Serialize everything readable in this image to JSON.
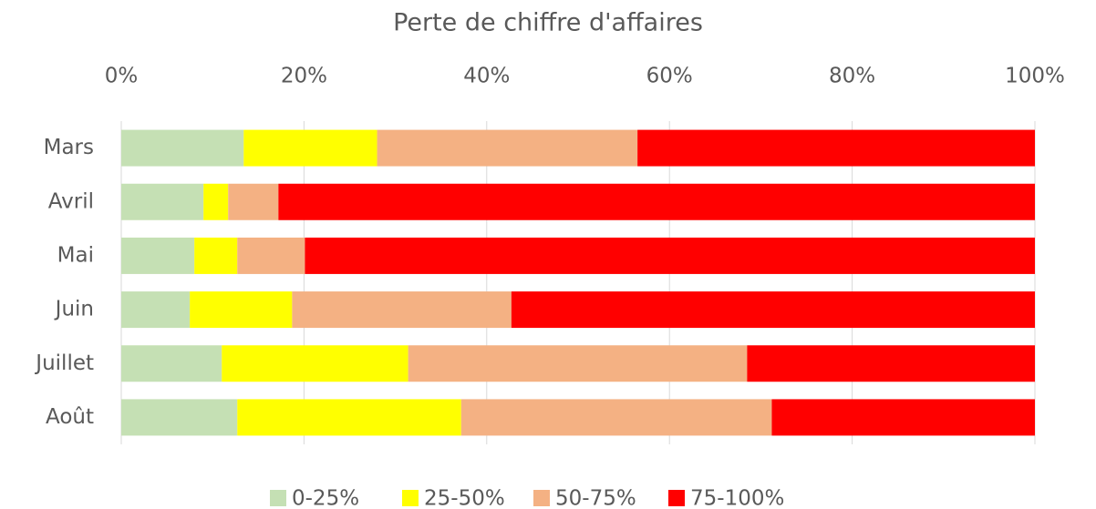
{
  "chart_data": {
    "type": "stacked_barh",
    "title": "Perte de chiffre d'affaires",
    "categories": [
      "Mars",
      "Avril",
      "Mai",
      "Juin",
      "Juillet",
      "Août"
    ],
    "series": [
      {
        "name": "0-25%",
        "color": "#c5e0b4",
        "values": [
          13.4,
          9.0,
          8.0,
          7.5,
          11.0,
          12.7
        ]
      },
      {
        "name": "25-50%",
        "color": "#ffff00",
        "values": [
          14.6,
          2.7,
          4.7,
          11.2,
          20.4,
          24.5
        ]
      },
      {
        "name": "50-75%",
        "color": "#f4b183",
        "values": [
          28.5,
          5.5,
          7.4,
          24.0,
          37.1,
          34.0
        ]
      },
      {
        "name": "75-100%",
        "color": "#ff0000",
        "values": [
          43.5,
          82.8,
          79.9,
          57.3,
          31.5,
          28.8
        ]
      }
    ],
    "xlim": [
      0,
      100
    ],
    "xticks": [
      {
        "value": 0,
        "label": "0%"
      },
      {
        "value": 20,
        "label": "20%"
      },
      {
        "value": 40,
        "label": "40%"
      },
      {
        "value": 60,
        "label": "60%"
      },
      {
        "value": 80,
        "label": "80%"
      },
      {
        "value": 100,
        "label": "100%"
      }
    ],
    "grid": true,
    "legend": "bottom"
  }
}
